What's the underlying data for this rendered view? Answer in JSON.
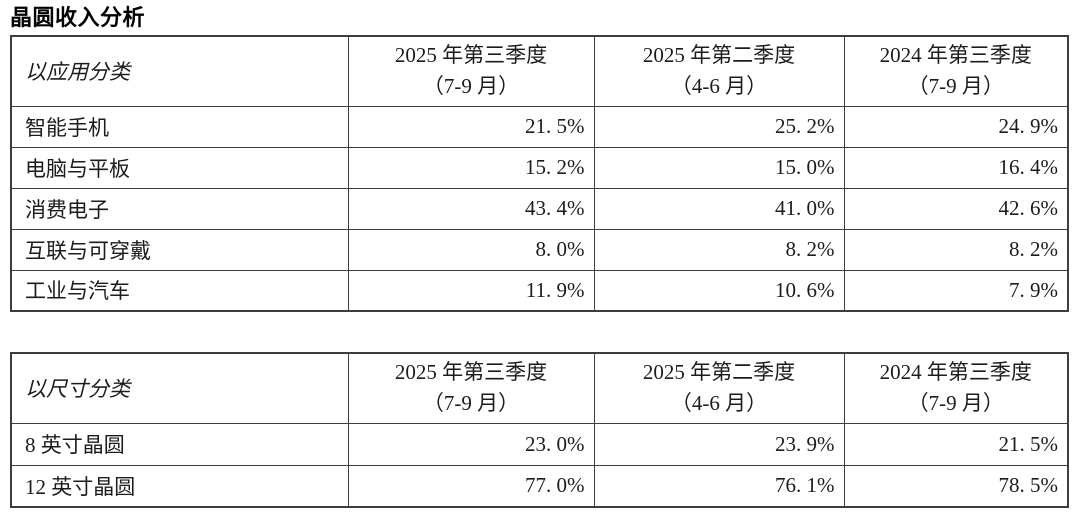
{
  "title": "晶圆收入分析",
  "periods": [
    {
      "line1": "2025 年第三季度",
      "line2": "（7-9 月）"
    },
    {
      "line1": "2025 年第二季度",
      "line2": "（4-6 月）"
    },
    {
      "line1": "2024 年第三季度",
      "line2": "（7-9 月）"
    }
  ],
  "application_table": {
    "category_header": "以应用分类",
    "rows": [
      {
        "label": "智能手机",
        "values": [
          "21. 5%",
          "25. 2%",
          "24. 9%"
        ]
      },
      {
        "label": "电脑与平板",
        "values": [
          "15. 2%",
          "15. 0%",
          "16. 4%"
        ]
      },
      {
        "label": "消费电子",
        "values": [
          "43. 4%",
          "41. 0%",
          "42. 6%"
        ]
      },
      {
        "label": "互联与可穿戴",
        "values": [
          "8. 0%",
          "8. 2%",
          "8. 2%"
        ]
      },
      {
        "label": "工业与汽车",
        "values": [
          "11. 9%",
          "10. 6%",
          "7. 9%"
        ]
      }
    ]
  },
  "size_table": {
    "category_header": "以尺寸分类",
    "rows": [
      {
        "label": "8 英寸晶圆",
        "values": [
          "23. 0%",
          "23. 9%",
          "21. 5%"
        ]
      },
      {
        "label": "12 英寸晶圆",
        "values": [
          "77. 0%",
          "76. 1%",
          "78. 5%"
        ]
      }
    ]
  },
  "colors": {
    "text": "#1c1c1c",
    "border": "#3d3d3d",
    "background": "#ffffff"
  }
}
